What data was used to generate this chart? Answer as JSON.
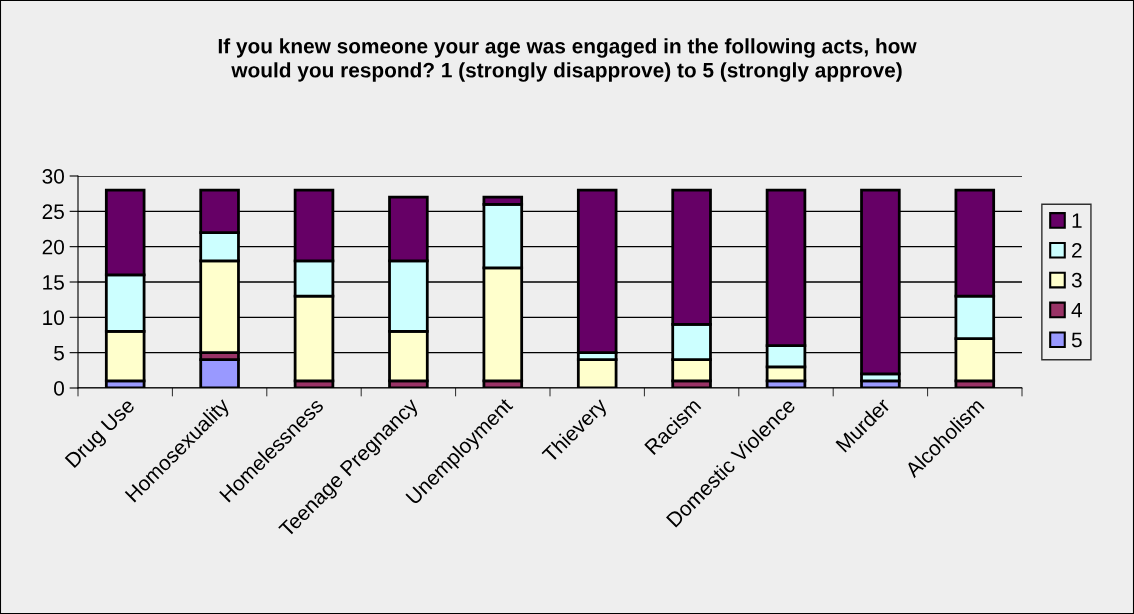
{
  "chart_data": {
    "type": "bar",
    "stacked": true,
    "title": "If you knew someone your age was engaged in the following acts, how\nwould you respond? 1 (strongly disapprove) to 5 (strongly approve)",
    "categories": [
      "Drug Use",
      "Homosexuality",
      "Homelessness",
      "Teenage Pregnancy",
      "Unemployment",
      "Thievery",
      "Racism",
      "Domestic Violence",
      "Murder",
      "Alcoholism"
    ],
    "series": [
      {
        "name": "5",
        "color": "#9999ff",
        "values": [
          1,
          4,
          0,
          0,
          0,
          0,
          0,
          1,
          1,
          0
        ]
      },
      {
        "name": "4",
        "color": "#993366",
        "values": [
          0,
          1,
          1,
          1,
          1,
          0,
          1,
          0,
          0,
          1
        ]
      },
      {
        "name": "3",
        "color": "#ffffcc",
        "values": [
          7,
          13,
          12,
          7,
          16,
          4,
          3,
          2,
          0,
          6
        ]
      },
      {
        "name": "2",
        "color": "#ccffff",
        "values": [
          8,
          4,
          5,
          10,
          9,
          1,
          5,
          3,
          1,
          6
        ]
      },
      {
        "name": "1",
        "color": "#660066",
        "values": [
          12,
          6,
          10,
          9,
          1,
          23,
          19,
          22,
          26,
          15
        ]
      }
    ],
    "ylim": [
      0,
      30
    ],
    "yticks": [
      0,
      5,
      10,
      15,
      20,
      25,
      30
    ],
    "grid": "y",
    "legend": "right"
  }
}
